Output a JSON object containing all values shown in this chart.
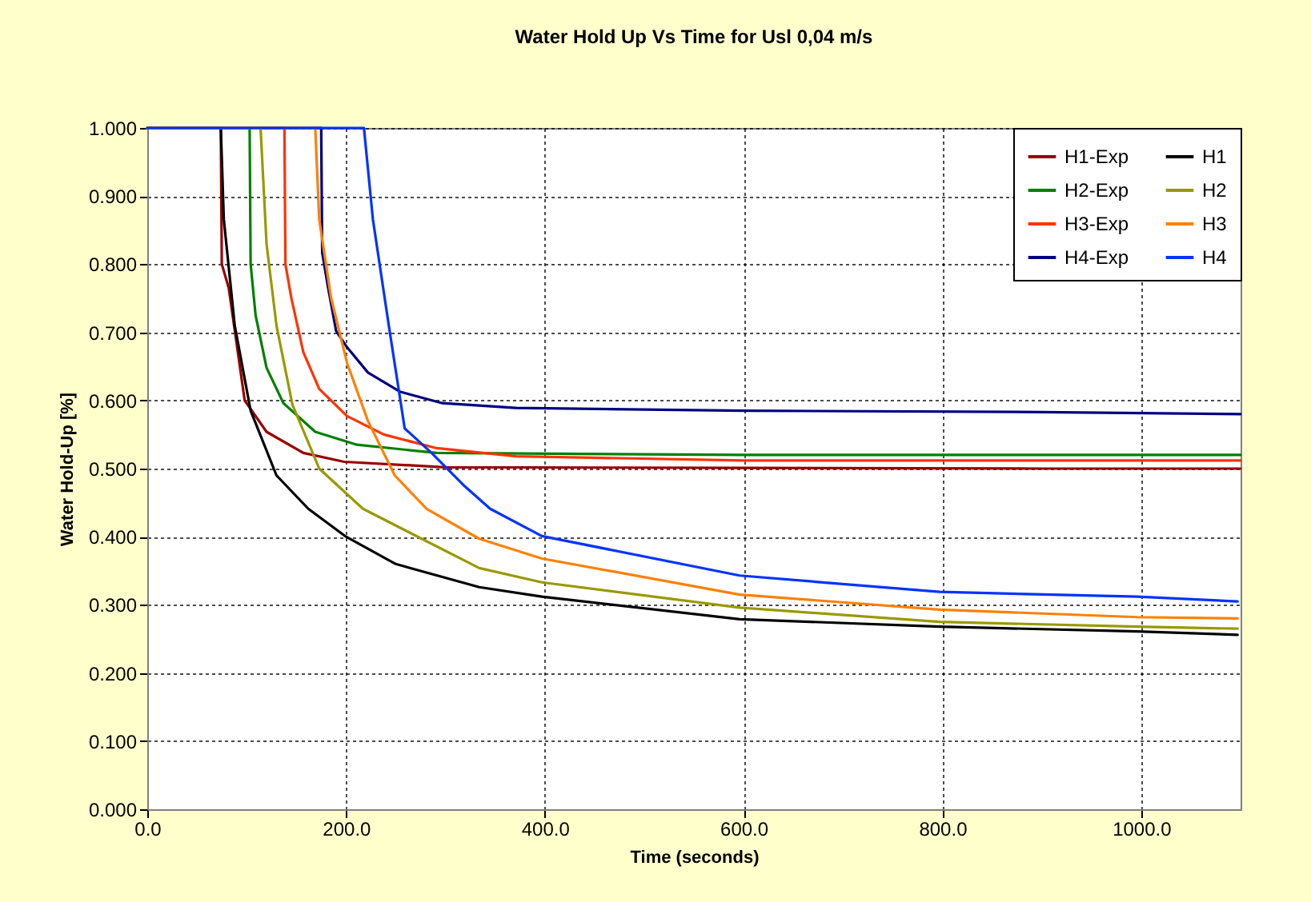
{
  "chart_data": {
    "type": "line",
    "title": "Water Hold Up Vs Time for Usl 0,04 m/s",
    "xlabel": "Time (seconds)",
    "ylabel": "Water Hold-Up [%]",
    "xlim": [
      0,
      1100
    ],
    "ylim": [
      0,
      1
    ],
    "xticks": [
      {
        "value": 0,
        "label": "0.0"
      },
      {
        "value": 200,
        "label": "200.0"
      },
      {
        "value": 400,
        "label": "400.0"
      },
      {
        "value": 600,
        "label": "600.0"
      },
      {
        "value": 800,
        "label": "800.0"
      },
      {
        "value": 1000,
        "label": "1000.0"
      }
    ],
    "yticks": [
      {
        "value": 0,
        "label": "0.000"
      },
      {
        "value": 0.1,
        "label": "0.100"
      },
      {
        "value": 0.2,
        "label": "0.200"
      },
      {
        "value": 0.3,
        "label": "0.300"
      },
      {
        "value": 0.4,
        "label": "0.400"
      },
      {
        "value": 0.5,
        "label": "0.500"
      },
      {
        "value": 0.6,
        "label": "0.600"
      },
      {
        "value": 0.7,
        "label": "0.700"
      },
      {
        "value": 0.8,
        "label": "0.800"
      },
      {
        "value": 0.9,
        "label": "0.900"
      },
      {
        "value": 1,
        "label": "1.000"
      }
    ],
    "grid": true,
    "legend": "top right",
    "line_style": "solid",
    "marker": "none",
    "series": [
      {
        "name": "H1-Exp",
        "color": "#990000",
        "x": [
          0,
          74,
          75,
          82,
          98,
          120,
          157,
          198,
          300,
          600,
          900,
          1100
        ],
        "values": [
          1,
          1,
          0.8,
          0.765,
          0.6,
          0.554,
          0.523,
          0.51,
          0.502,
          0.501,
          0.5,
          0.5
        ]
      },
      {
        "name": "H2-Exp",
        "color": "#008000",
        "x": [
          0,
          103,
          104,
          109,
          120,
          137,
          169,
          211,
          291,
          600,
          900,
          1100
        ],
        "values": [
          1,
          1,
          0.8,
          0.725,
          0.648,
          0.596,
          0.554,
          0.535,
          0.523,
          0.52,
          0.52,
          0.52
        ]
      },
      {
        "name": "H3-Exp",
        "color": "#ff3300",
        "x": [
          0,
          138,
          139,
          145,
          157,
          173,
          201,
          238,
          291,
          371,
          600,
          900,
          1100
        ],
        "values": [
          1,
          1,
          0.8,
          0.75,
          0.671,
          0.617,
          0.577,
          0.55,
          0.53,
          0.518,
          0.512,
          0.512,
          0.512
        ]
      },
      {
        "name": "H4-Exp",
        "color": "#000080",
        "x": [
          0,
          175,
          176,
          182,
          190,
          201,
          222,
          254,
          297,
          371,
          600,
          900,
          1100
        ],
        "values": [
          1,
          1,
          0.817,
          0.765,
          0.702,
          0.678,
          0.641,
          0.613,
          0.596,
          0.589,
          0.585,
          0.583,
          0.58
        ]
      },
      {
        "name": "H1",
        "color": "#000000",
        "x": [
          0,
          74,
          77,
          88,
          104,
          130,
          162,
          200,
          250,
          334,
          397,
          596,
          797,
          996,
          1097
        ],
        "values": [
          1,
          1,
          0.866,
          0.71,
          0.585,
          0.49,
          0.441,
          0.4,
          0.36,
          0.326,
          0.312,
          0.279,
          0.268,
          0.261,
          0.256
        ]
      },
      {
        "name": "H2",
        "color": "#999900",
        "x": [
          0,
          114,
          120,
          130,
          146,
          173,
          217,
          334,
          397,
          596,
          797,
          996,
          1097
        ],
        "values": [
          1,
          1,
          0.83,
          0.71,
          0.594,
          0.5,
          0.441,
          0.354,
          0.333,
          0.296,
          0.275,
          0.268,
          0.265
        ]
      },
      {
        "name": "H3",
        "color": "#ff8000",
        "x": [
          0,
          169,
          173,
          185,
          201,
          222,
          249,
          281,
          334,
          397,
          596,
          797,
          996,
          1097
        ],
        "values": [
          1,
          1,
          0.866,
          0.75,
          0.655,
          0.57,
          0.49,
          0.441,
          0.397,
          0.368,
          0.315,
          0.293,
          0.282,
          0.28
        ]
      },
      {
        "name": "H4",
        "color": "#0033ff",
        "x": [
          0,
          218,
          227,
          243,
          259,
          286,
          318,
          345,
          397,
          596,
          797,
          996,
          1097
        ],
        "values": [
          1,
          1,
          0.866,
          0.71,
          0.559,
          0.523,
          0.476,
          0.441,
          0.401,
          0.343,
          0.319,
          0.312,
          0.305
        ]
      }
    ]
  }
}
